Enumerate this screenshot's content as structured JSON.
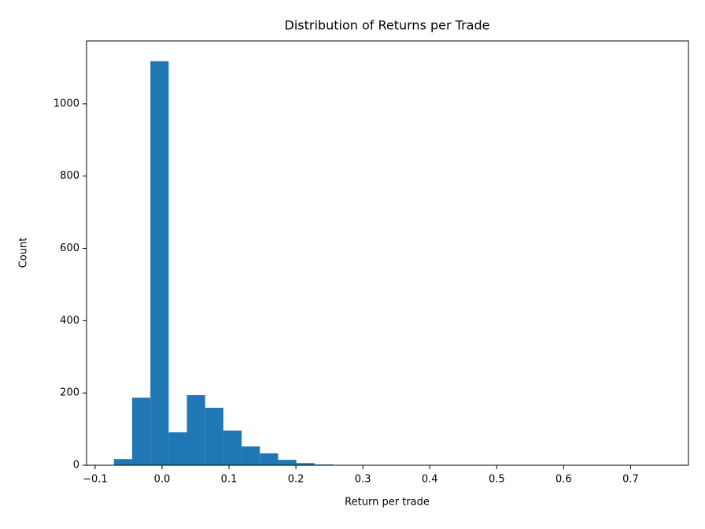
{
  "chart_data": {
    "type": "histogram",
    "title": "Distribution of Returns per Trade",
    "x_label": "Return per trade",
    "y_label": "Count",
    "color": "#1f77b4",
    "bins": [
      -0.0719,
      -0.0447,
      -0.0174,
      0.0099,
      0.0371,
      0.0644,
      0.0916,
      0.1189,
      0.1461,
      0.1734,
      0.2006,
      0.2279,
      0.2551,
      0.2824,
      0.3096,
      0.3369,
      0.3641,
      0.3914,
      0.4186,
      0.4459,
      0.4731,
      0.5004,
      0.5276,
      0.5549,
      0.5821,
      0.6094,
      0.6366,
      0.6639,
      0.6911,
      0.7184,
      0.7456
    ],
    "counts": [
      17,
      187,
      1118,
      91,
      194,
      159,
      96,
      52,
      33,
      15,
      6,
      2,
      1,
      1,
      1,
      0,
      0,
      0,
      0,
      0,
      0,
      0,
      0,
      0,
      0,
      0,
      0,
      0,
      0,
      1
    ],
    "xlim": [
      -0.1128,
      0.7865
    ],
    "ylim": [
      0,
      1174
    ],
    "xticks": [
      {
        "value": -0.1,
        "label": "−0.1"
      },
      {
        "value": 0,
        "label": "0.0"
      },
      0.1,
      0.2,
      0.3,
      0.4,
      0.5,
      0.6,
      0.7
    ],
    "yticks": [
      0,
      200,
      400,
      600,
      800,
      1000
    ]
  }
}
